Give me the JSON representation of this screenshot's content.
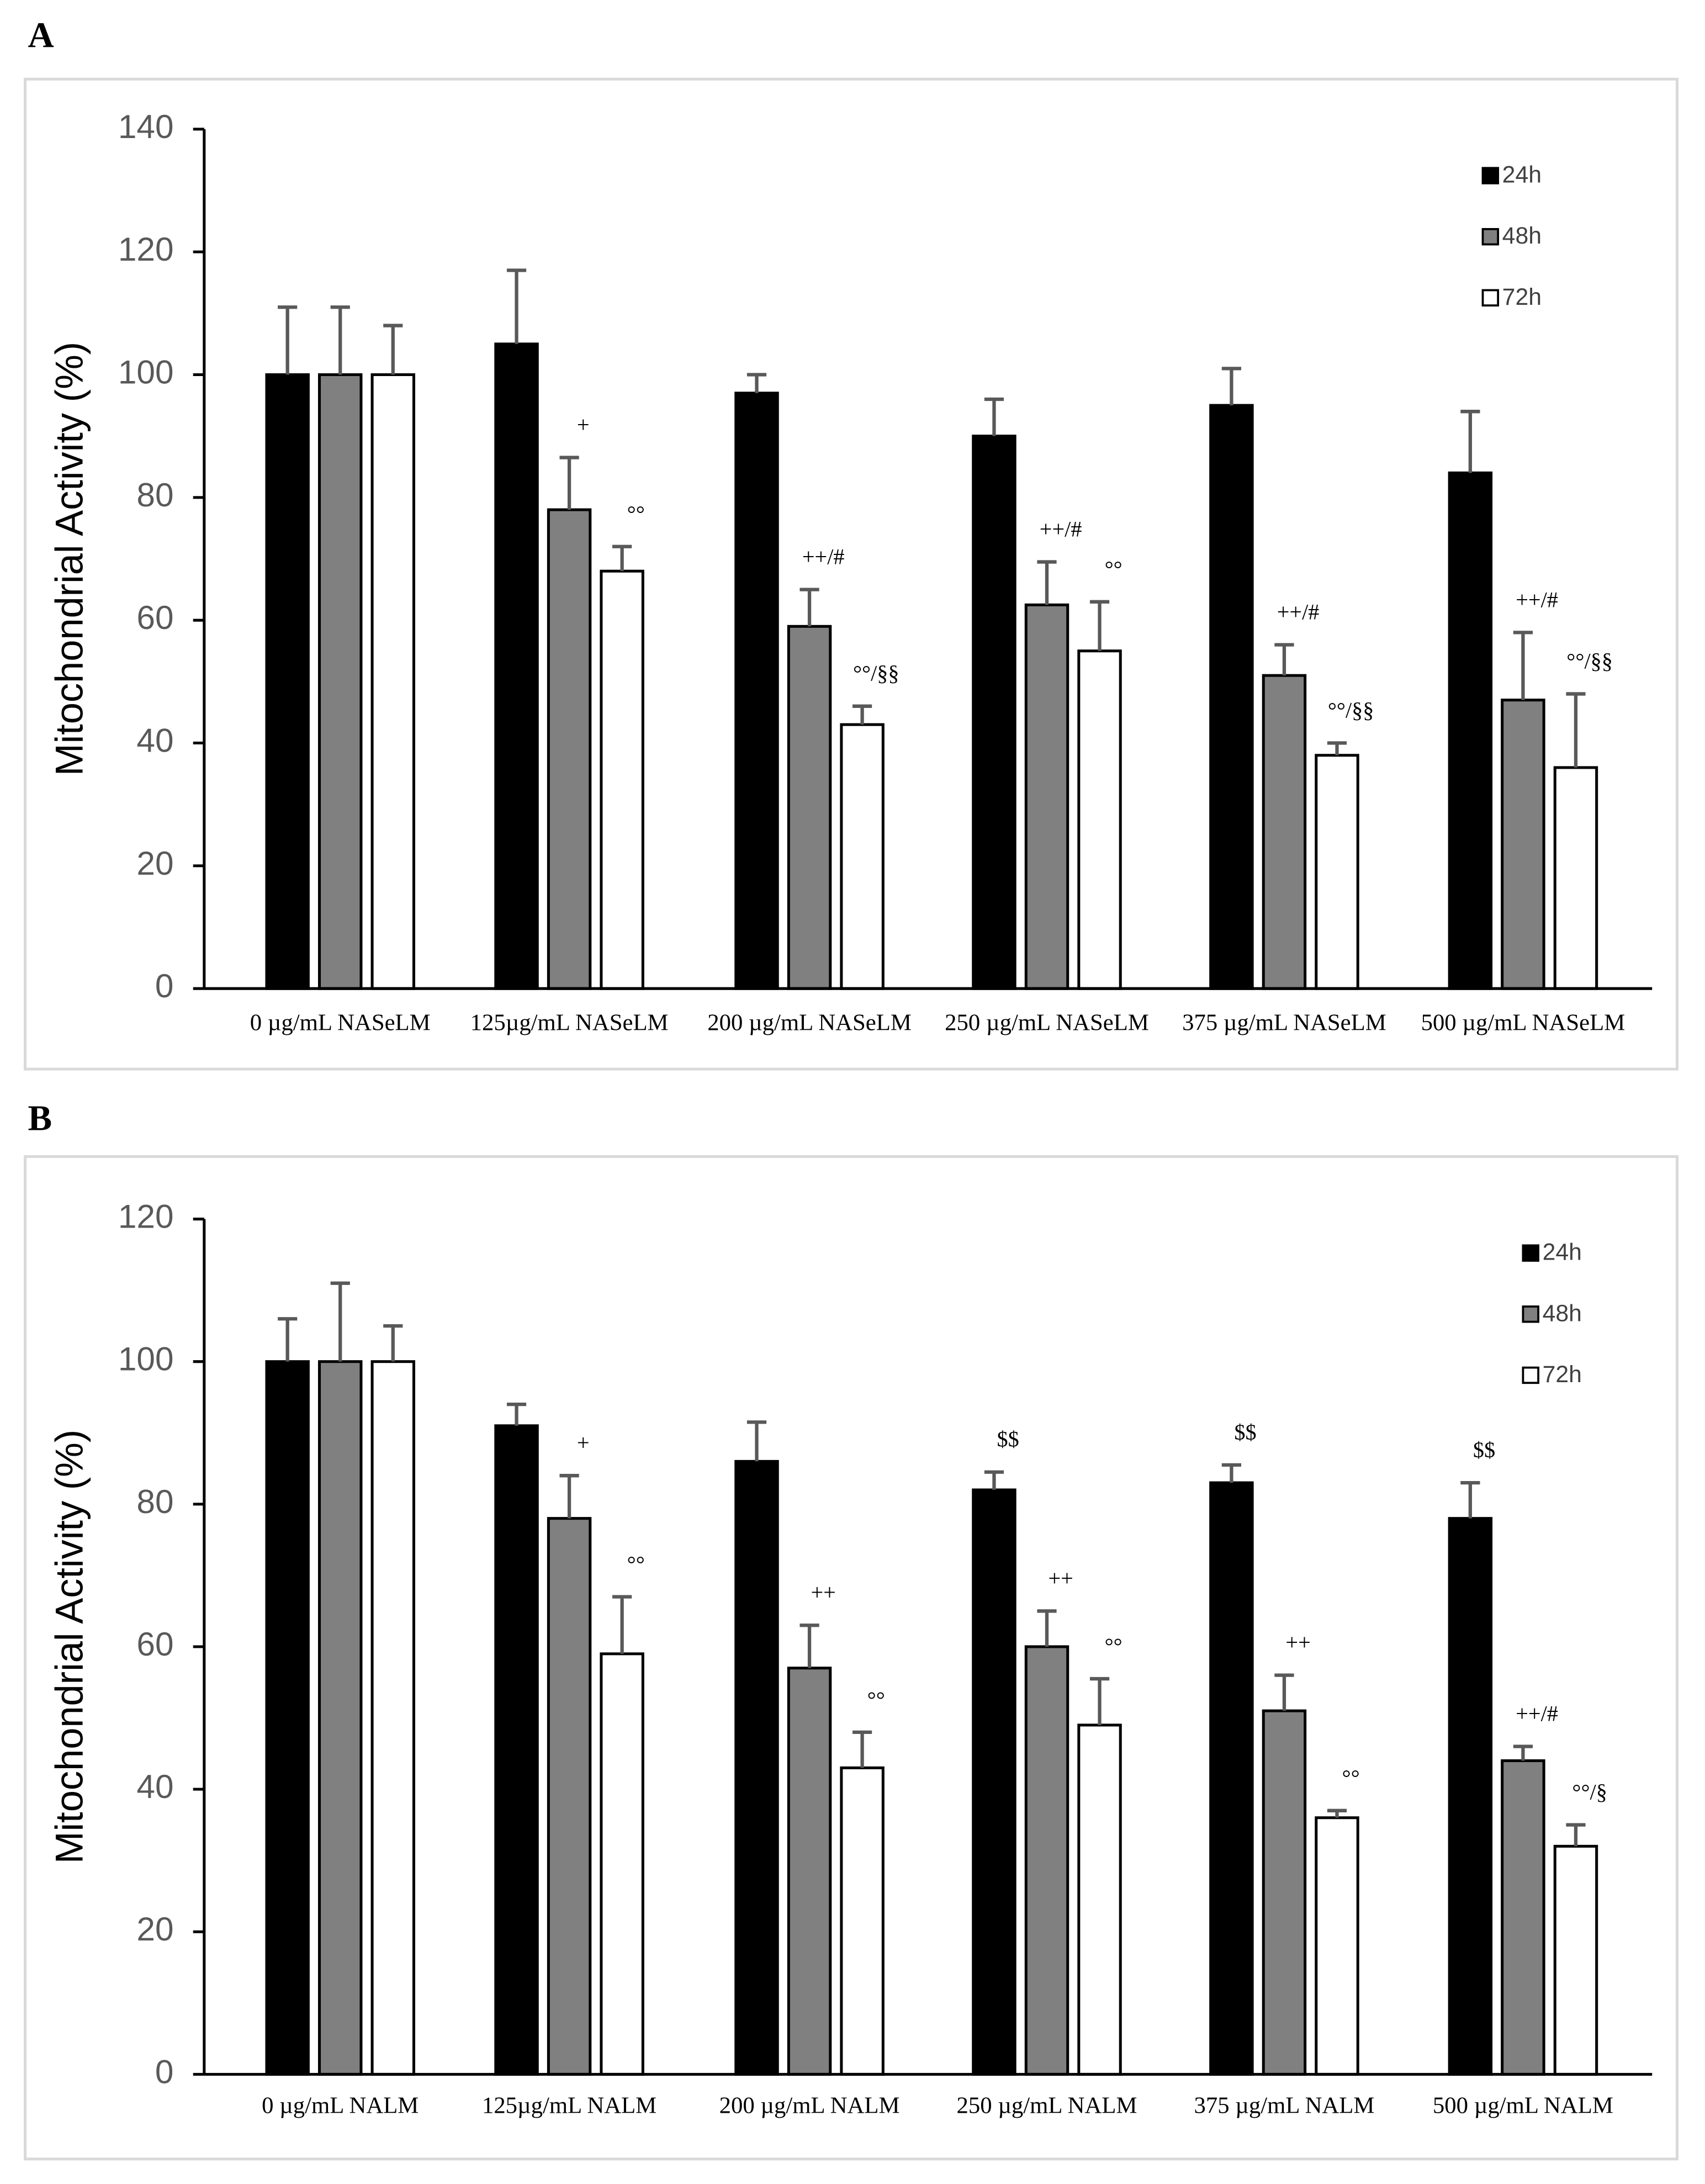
{
  "chart_data": [
    {
      "type": "bar",
      "panel": "A",
      "y_label": "Mitochondrial Activity (%)",
      "categories": [
        "0 µg/mL NASeLM",
        "125µg/mL NASeLM",
        "200 µg/mL NASeLM",
        "250 µg/mL NASeLM",
        "375 µg/mL NASeLM",
        "500 µg/mL NASeLM"
      ],
      "series": [
        {
          "name": "24h",
          "color": "#000000",
          "values": [
            100,
            105,
            97,
            90,
            95,
            84
          ],
          "errors": [
            11,
            12,
            3,
            6,
            6,
            10
          ],
          "labels": [
            null,
            null,
            null,
            null,
            null,
            null
          ]
        },
        {
          "name": "48h",
          "color": "#808080",
          "values": [
            100,
            78,
            59,
            62.5,
            51,
            47
          ],
          "errors": [
            11,
            8.5,
            6,
            7,
            5,
            11
          ],
          "labels": [
            null,
            "+",
            "++/#",
            "++/#",
            "++/#",
            "++/#"
          ]
        },
        {
          "name": "72h",
          "color": "#ffffff",
          "values": [
            100,
            68,
            43,
            55,
            38,
            36
          ],
          "errors": [
            8,
            4,
            3,
            8,
            2,
            12
          ],
          "labels": [
            null,
            "°°",
            "°°/§§",
            "°°",
            "°°/§§",
            "°°/§§"
          ]
        }
      ],
      "ylim": [
        0,
        140
      ],
      "yticks": [
        0,
        20,
        40,
        60,
        80,
        100,
        120,
        140
      ],
      "legend": "upper right"
    },
    {
      "type": "bar",
      "panel": "B",
      "y_label": "Mitochondrial Activity (%)",
      "categories": [
        "0 µg/mL NALM",
        "125µg/mL NALM",
        "200 µg/mL NALM",
        "250 µg/mL NALM",
        "375 µg/mL NALM",
        "500 µg/mL NALM"
      ],
      "series": [
        {
          "name": "24h",
          "color": "#000000",
          "values": [
            100,
            91,
            86,
            82,
            83,
            78
          ],
          "errors": [
            6,
            3,
            5.5,
            2.5,
            2.5,
            5
          ],
          "labels": [
            null,
            null,
            null,
            "$$",
            "$$",
            "$$"
          ]
        },
        {
          "name": "48h",
          "color": "#808080",
          "values": [
            100,
            78,
            57,
            60,
            51,
            44
          ],
          "errors": [
            11,
            6,
            6,
            5,
            5,
            2
          ],
          "labels": [
            null,
            "+",
            "++",
            "++",
            "++",
            "++/#"
          ]
        },
        {
          "name": "72h",
          "color": "#ffffff",
          "values": [
            100,
            59,
            43,
            49,
            36,
            32
          ],
          "errors": [
            5,
            8,
            5,
            6.5,
            1,
            3
          ],
          "labels": [
            null,
            "°°",
            "°°",
            "°°",
            "°°",
            "°°/§"
          ]
        }
      ],
      "ylim": [
        0,
        120
      ],
      "yticks": [
        0,
        20,
        40,
        60,
        80,
        100,
        120
      ],
      "legend": "upper right"
    }
  ]
}
